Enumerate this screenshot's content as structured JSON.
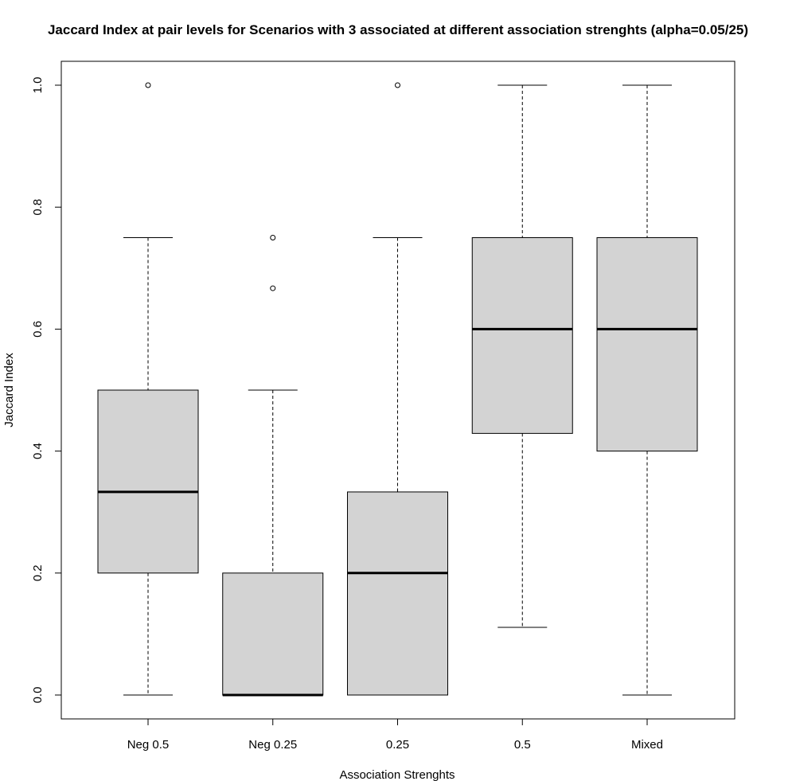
{
  "chart_data": {
    "type": "box",
    "title": "Jaccard Index at pair levels for Scenarios with 3 associated at different association strenghts (alpha=0.05/25)",
    "xlabel": "Association Strenghts",
    "ylabel": "Jaccard Index",
    "ylim": [
      -0.04,
      1.04
    ],
    "yticks": [
      0.0,
      0.2,
      0.4,
      0.6,
      0.8,
      1.0
    ],
    "ytick_labels": [
      "0.0",
      "0.2",
      "0.4",
      "0.6",
      "0.8",
      "1.0"
    ],
    "grid": false,
    "box_fill": "#d3d3d3",
    "categories": [
      "Neg 0.5",
      "Neg 0.25",
      "0.25",
      "0.5",
      "Mixed"
    ],
    "boxes": [
      {
        "category": "Neg 0.5",
        "whisker_low": 0.0,
        "q1": 0.2,
        "median": 0.333,
        "q3": 0.5,
        "whisker_high": 0.75,
        "outliers": [
          1.0
        ]
      },
      {
        "category": "Neg 0.25",
        "whisker_low": 0.0,
        "q1": 0.0,
        "median": 0.0,
        "q3": 0.2,
        "whisker_high": 0.5,
        "outliers": [
          0.667,
          0.75
        ]
      },
      {
        "category": "0.25",
        "whisker_low": 0.0,
        "q1": 0.0,
        "median": 0.2,
        "q3": 0.333,
        "whisker_high": 0.75,
        "outliers": [
          1.0
        ]
      },
      {
        "category": "0.5",
        "whisker_low": 0.111,
        "q1": 0.429,
        "median": 0.6,
        "q3": 0.75,
        "whisker_high": 1.0,
        "outliers": []
      },
      {
        "category": "Mixed",
        "whisker_low": 0.0,
        "q1": 0.4,
        "median": 0.6,
        "q3": 0.75,
        "whisker_high": 1.0,
        "outliers": []
      }
    ]
  }
}
